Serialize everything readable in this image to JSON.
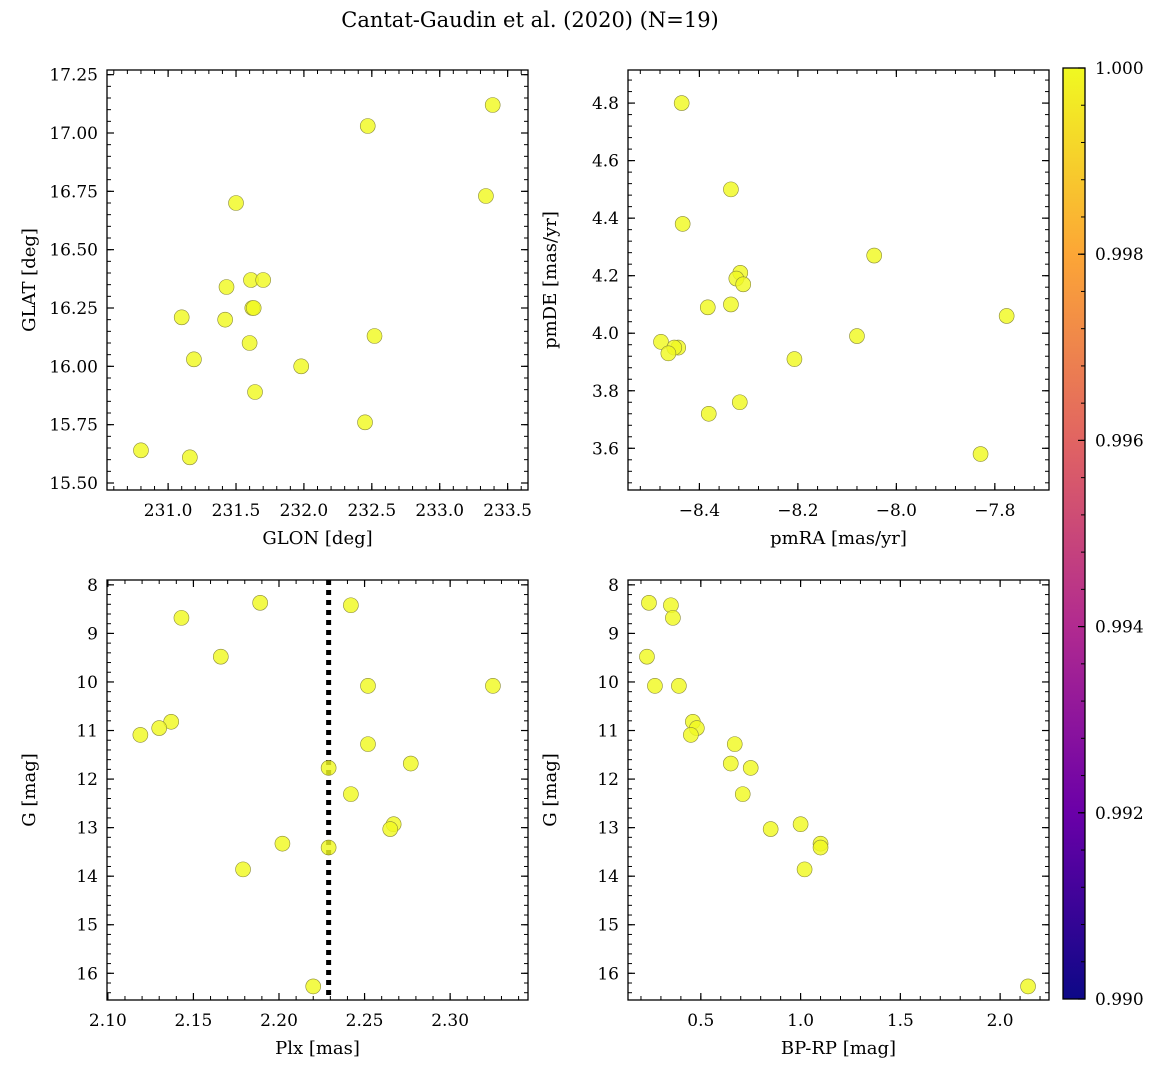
{
  "figure": {
    "title": "Cantat-Gaudin et al. (2020) (N=19)"
  },
  "colorbar": {
    "min": 0.99,
    "max": 1.0,
    "ticks": [
      "0.990",
      "0.992",
      "0.994",
      "0.996",
      "0.998",
      "1.000"
    ],
    "colormap": "plasma",
    "stops": [
      "#0d0887",
      "#6a00a8",
      "#b12a90",
      "#e16462",
      "#fca636",
      "#f0f921"
    ]
  },
  "point_style": {
    "fill": "#f0f921",
    "stroke": "#8a8a3a",
    "opacity": 0.82
  },
  "chart_data": [
    {
      "type": "scatter",
      "xlabel": "GLON [deg]",
      "ylabel": "GLAT [deg]",
      "xlim": [
        230.55,
        233.65
      ],
      "ylim": [
        15.47,
        17.27
      ],
      "xticks": [
        "231.0",
        "231.5",
        "232.0",
        "232.5",
        "233.0",
        "233.5"
      ],
      "yticks": [
        "15.50",
        "15.75",
        "16.00",
        "16.25",
        "16.50",
        "16.75",
        "17.00",
        "17.25"
      ],
      "x": [
        233.39,
        232.47,
        233.34,
        231.5,
        231.61,
        231.7,
        231.43,
        231.62,
        231.63,
        231.1,
        231.42,
        232.52,
        231.6,
        231.19,
        231.98,
        231.64,
        232.45,
        230.8,
        231.16
      ],
      "y": [
        17.12,
        17.03,
        16.73,
        16.7,
        16.37,
        16.37,
        16.34,
        16.25,
        16.25,
        16.21,
        16.2,
        16.13,
        16.1,
        16.03,
        16.0,
        15.89,
        15.76,
        15.64,
        15.61
      ]
    },
    {
      "type": "scatter",
      "xlabel": "pmRA [mas/yr]",
      "ylabel": "pmDE [mas/yr]",
      "xlim": [
        -8.545,
        -7.69
      ],
      "ylim": [
        3.455,
        4.915
      ],
      "xticks": [
        "−8.4",
        "−8.2",
        "−8.0",
        "−7.8"
      ],
      "yticks": [
        "3.6",
        "3.8",
        "4.0",
        "4.2",
        "4.4",
        "4.6",
        "4.8"
      ],
      "x": [
        -8.436,
        -8.336,
        -8.434,
        -8.045,
        -8.317,
        -8.325,
        -8.311,
        -8.336,
        -8.383,
        -7.776,
        -8.08,
        -8.478,
        -8.443,
        -8.451,
        -8.463,
        -8.207,
        -8.318,
        -8.381,
        -7.829
      ],
      "y": [
        4.8,
        4.5,
        4.38,
        4.27,
        4.21,
        4.19,
        4.17,
        4.1,
        4.09,
        4.06,
        3.99,
        3.97,
        3.95,
        3.95,
        3.93,
        3.91,
        3.76,
        3.72,
        3.58
      ]
    },
    {
      "type": "scatter",
      "xlabel": "Plx [mas]",
      "ylabel": "G [mag]",
      "xlim": [
        2.0995,
        2.3455
      ],
      "ylim": [
        16.55,
        7.9
      ],
      "y_inverted": true,
      "xticks": [
        "2.10",
        "2.15",
        "2.20",
        "2.25",
        "2.30"
      ],
      "yticks": [
        "8",
        "9",
        "10",
        "11",
        "12",
        "13",
        "14",
        "15",
        "16"
      ],
      "vline": 2.229,
      "x": [
        2.189,
        2.242,
        2.143,
        2.166,
        2.252,
        2.325,
        2.137,
        2.13,
        2.119,
        2.252,
        2.277,
        2.229,
        2.242,
        2.267,
        2.265,
        2.202,
        2.229,
        2.179,
        2.22
      ],
      "y": [
        8.37,
        8.42,
        8.68,
        9.48,
        10.08,
        10.08,
        10.82,
        10.95,
        11.09,
        11.28,
        11.68,
        11.77,
        12.31,
        12.93,
        13.03,
        13.33,
        13.41,
        13.86,
        16.27
      ]
    },
    {
      "type": "scatter",
      "xlabel": "BP-RP [mag]",
      "ylabel": "G [mag]",
      "xlim": [
        0.135,
        2.245
      ],
      "ylim": [
        16.55,
        7.9
      ],
      "y_inverted": true,
      "xticks": [
        "0.5",
        "1.0",
        "1.5",
        "2.0"
      ],
      "yticks": [
        "8",
        "9",
        "10",
        "11",
        "12",
        "13",
        "14",
        "15",
        "16"
      ],
      "x": [
        0.24,
        0.35,
        0.36,
        0.23,
        0.27,
        0.39,
        0.46,
        0.48,
        0.45,
        0.67,
        0.65,
        0.75,
        0.71,
        1.0,
        0.85,
        1.1,
        1.1,
        1.02,
        2.14
      ],
      "y": [
        8.37,
        8.42,
        8.68,
        9.48,
        10.08,
        10.08,
        10.82,
        10.95,
        11.09,
        11.28,
        11.68,
        11.77,
        12.31,
        12.93,
        13.03,
        13.33,
        13.41,
        13.86,
        16.27
      ]
    }
  ]
}
